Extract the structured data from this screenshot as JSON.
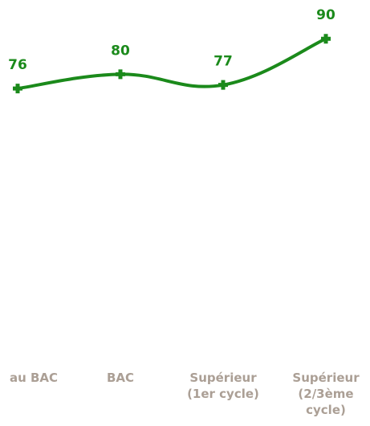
{
  "chart_data": {
    "type": "line",
    "categories": [
      "au BAC",
      "BAC",
      "Supérieur (1er cycle)",
      "Supérieur (2/3ème cycle)"
    ],
    "series": [
      {
        "color": "#1b8a1b",
        "values": [
          76,
          80,
          77,
          90
        ]
      }
    ],
    "ylim": [
      0,
      100
    ],
    "grid": false
  }
}
